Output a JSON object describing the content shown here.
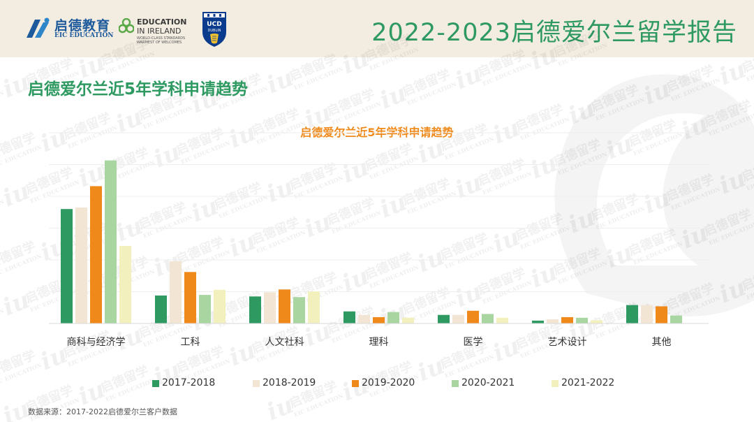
{
  "header": {
    "eic_logo": {
      "name": "启德教育",
      "sub": "EIC EDUCATION"
    },
    "eii_logo": {
      "line1": "EDUCATION",
      "line2": "IN IRELAND",
      "line3a": "WORLD-CLASS STANDARDS",
      "line3b": "WARMEST OF WELCOMES"
    },
    "ucd_logo": {
      "line1": "UCD",
      "line2": "DUBLIN"
    },
    "report_title": "2022-2023启德爱尔兰留学报告"
  },
  "page_title": "启德爱尔兰近5年学科申请趋势",
  "watermark": {
    "cn": "启德留学",
    "en": "EIC EDUCATION"
  },
  "source_note": "数据来源：2017-2022启德爱尔兰客户数据",
  "colors": {
    "brand_green": "#2e9a62",
    "brand_blue": "#1d5a9c",
    "accent_orange": "#ef8a1a",
    "header_bg": "#f3ece1"
  },
  "chart_data": {
    "type": "bar",
    "title": "启德爱尔兰近5年学科申请趋势",
    "xlabel": "",
    "ylabel": "",
    "ylim": [
      0,
      60
    ],
    "grid": true,
    "legend_position": "bottom",
    "categories": [
      "商科与经济学",
      "工科",
      "人文社科",
      "理科",
      "医学",
      "艺术设计",
      "其他"
    ],
    "series": [
      {
        "name": "2017-2018",
        "color": "#2e9a62",
        "values": [
          36.0,
          8.8,
          8.5,
          3.8,
          2.7,
          0.9,
          5.8
        ]
      },
      {
        "name": "2018-2019",
        "color": "#f3e5d3",
        "values": [
          36.5,
          19.6,
          9.8,
          2.7,
          2.7,
          1.3,
          5.8
        ]
      },
      {
        "name": "2019-2020",
        "color": "#ef8a1a",
        "values": [
          43.2,
          16.2,
          10.7,
          2.0,
          4.0,
          2.0,
          5.4
        ]
      },
      {
        "name": "2020-2021",
        "color": "#a9d5a1",
        "values": [
          51.3,
          9.0,
          8.3,
          3.6,
          3.0,
          1.8,
          2.5
        ]
      },
      {
        "name": "2021-2022",
        "color": "#f2f0bd",
        "values": [
          24.4,
          10.6,
          10.1,
          1.8,
          1.8,
          1.0,
          0.0
        ]
      }
    ]
  }
}
